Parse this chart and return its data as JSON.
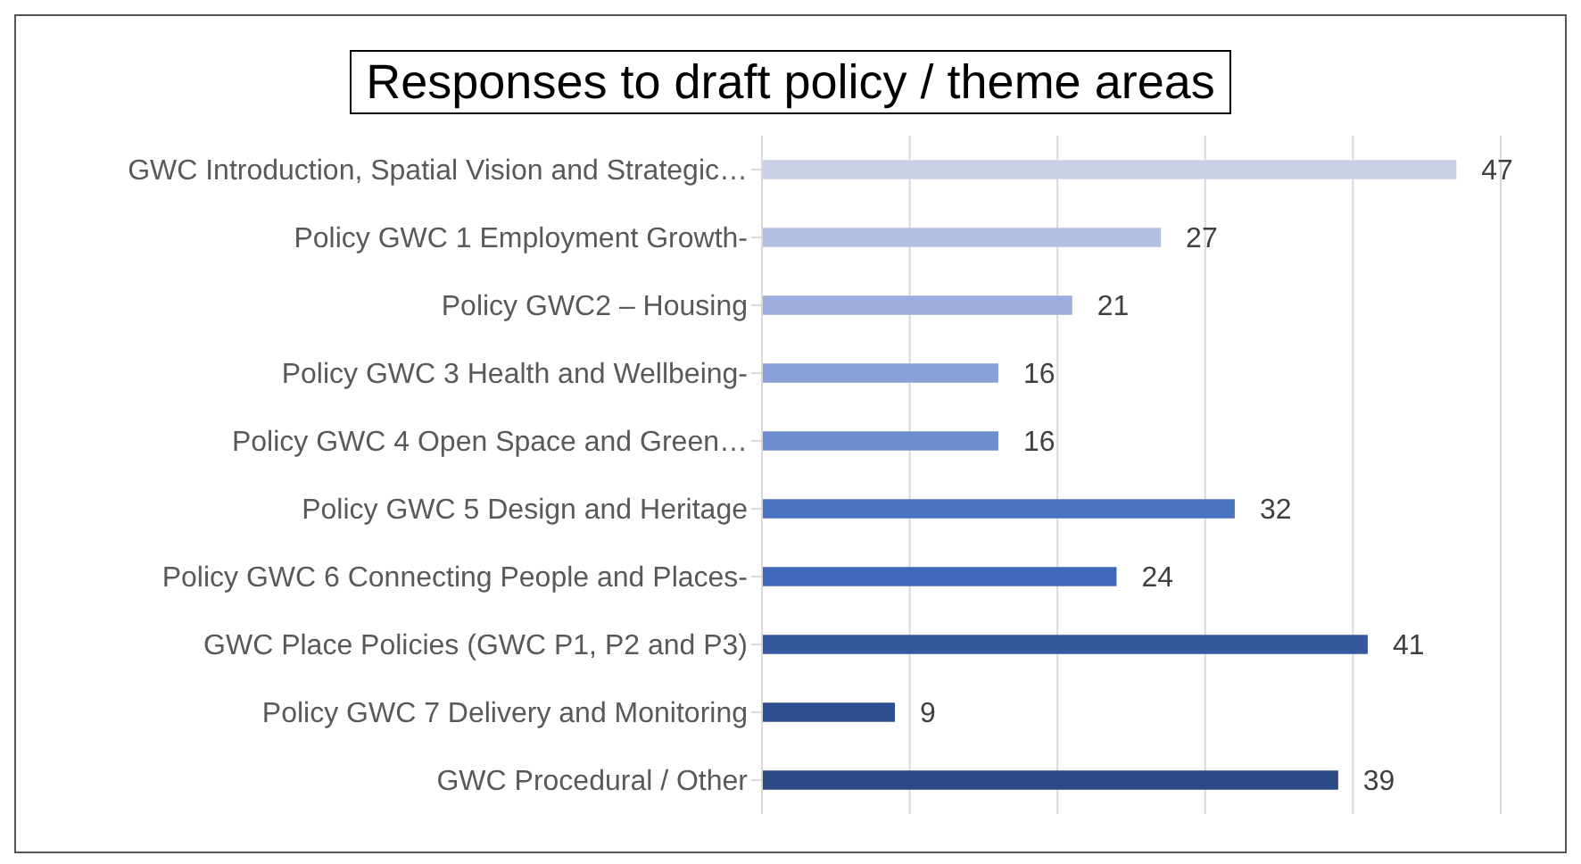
{
  "chart_data": {
    "type": "bar",
    "orientation": "horizontal",
    "title": "Responses to draft policy / theme areas",
    "categories": [
      "GWC Introduction, Spatial Vision and Strategic…",
      "Policy GWC 1 Employment Growth-",
      "Policy GWC2 – Housing",
      "Policy GWC 3 Health and Wellbeing-",
      "Policy GWC 4 Open Space and Green…",
      "Policy GWC 5 Design and Heritage",
      "Policy GWC 6 Connecting People and Places-",
      "GWC Place Policies (GWC P1, P2 and P3)",
      "Policy GWC 7 Delivery and Monitoring",
      "GWC Procedural / Other"
    ],
    "values": [
      47,
      27,
      21,
      16,
      16,
      32,
      24,
      41,
      9,
      39
    ],
    "colors": [
      "#c9d0e8",
      "#b3bfe2",
      "#9baede",
      "#8aa1d8",
      "#6f8ecf",
      "#4a73c2",
      "#3f67b7",
      "#35589f",
      "#2e4f8f",
      "#2b4a86"
    ],
    "grid": "x",
    "tick_labels": "y",
    "data_labels": true
  }
}
